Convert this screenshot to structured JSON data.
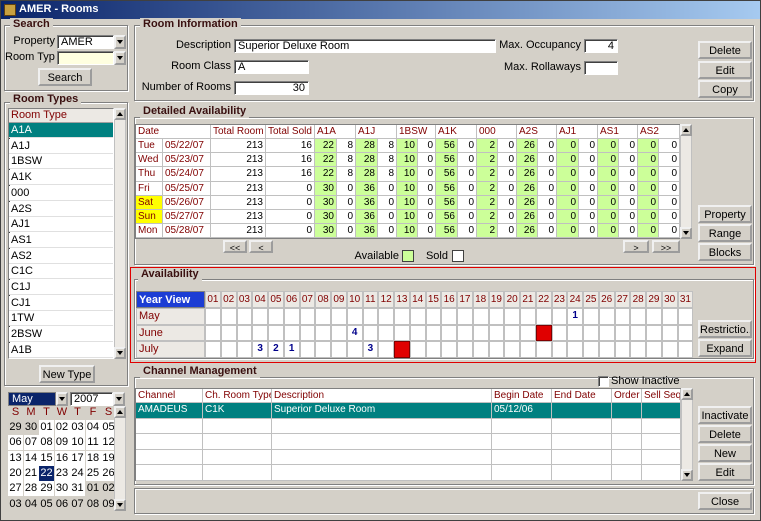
{
  "window": {
    "title": "AMER - Rooms"
  },
  "search": {
    "title": "Search",
    "property_label": "Property",
    "property": "AMER",
    "room_type_label": "Room Type",
    "button": "Search"
  },
  "room_types": {
    "title": "Room Types",
    "header": "Room Type",
    "items": [
      "A1A",
      "A1J",
      "1BSW",
      "A1K",
      "000",
      "A2S",
      "AJ1",
      "AS1",
      "AS2",
      "C1C",
      "C1J",
      "CJ1",
      "1TW",
      "2BSW",
      "A1B"
    ],
    "button": "New Type"
  },
  "calendar": {
    "month": "May",
    "year": "2007",
    "weekdays": [
      "S",
      "M",
      "T",
      "W",
      "T",
      "F",
      "S"
    ],
    "weeks": [
      [
        "29",
        "30",
        "01",
        "02",
        "03",
        "04",
        "05"
      ],
      [
        "06",
        "07",
        "08",
        "09",
        "10",
        "11",
        "12"
      ],
      [
        "13",
        "14",
        "15",
        "16",
        "17",
        "18",
        "19"
      ],
      [
        "20",
        "21",
        "22",
        "23",
        "24",
        "25",
        "26"
      ],
      [
        "27",
        "28",
        "29",
        "30",
        "31",
        "01",
        "02"
      ],
      [
        "03",
        "04",
        "05",
        "06",
        "07",
        "08",
        "09"
      ]
    ]
  },
  "room_info": {
    "title": "Room Information",
    "description_label": "Description",
    "description": "Superior Deluxe Room",
    "room_class_label": "Room Class",
    "room_class": "A",
    "rooms_label": "Number of Rooms",
    "rooms": "30",
    "max_occupancy_label": "Max. Occupancy",
    "max_occupancy": "4",
    "max_rollaways_label": "Max. Rollaways",
    "buttons": [
      "Delete",
      "Edit",
      "Copy"
    ]
  },
  "detailed": {
    "title": "Detailed Availability",
    "columns": [
      "Date",
      "Total Room",
      "Total Sold",
      "A1A",
      "A1J",
      "1BSW",
      "A1K",
      "000",
      "A2S",
      "AJ1",
      "AS1",
      "AS2"
    ],
    "rows": [
      [
        "Tue",
        "05/22/07",
        213,
        16,
        22,
        8,
        28,
        8,
        10,
        0,
        56,
        0,
        2,
        0,
        26,
        0,
        0,
        0,
        0,
        0,
        0,
        0
      ],
      [
        "Wed",
        "05/23/07",
        213,
        16,
        22,
        8,
        28,
        8,
        10,
        0,
        56,
        0,
        2,
        0,
        26,
        0,
        0,
        0,
        0,
        0,
        0,
        0
      ],
      [
        "Thu",
        "05/24/07",
        213,
        16,
        22,
        8,
        28,
        8,
        10,
        0,
        56,
        0,
        2,
        0,
        26,
        0,
        0,
        0,
        0,
        0,
        0,
        0
      ],
      [
        "Fri",
        "05/25/07",
        213,
        0,
        30,
        0,
        36,
        0,
        10,
        0,
        56,
        0,
        2,
        0,
        26,
        0,
        0,
        0,
        0,
        0,
        0,
        0
      ],
      [
        "Sat",
        "05/26/07",
        213,
        0,
        30,
        0,
        36,
        0,
        10,
        0,
        56,
        0,
        2,
        0,
        26,
        0,
        0,
        0,
        0,
        0,
        0,
        0
      ],
      [
        "Sun",
        "05/27/07",
        213,
        0,
        30,
        0,
        36,
        0,
        10,
        0,
        56,
        0,
        2,
        0,
        26,
        0,
        0,
        0,
        0,
        0,
        0,
        0
      ],
      [
        "Mon",
        "05/28/07",
        213,
        0,
        30,
        0,
        36,
        0,
        10,
        0,
        56,
        0,
        2,
        0,
        26,
        0,
        0,
        0,
        0,
        0,
        0,
        0
      ]
    ],
    "nav": [
      "<<",
      "<",
      ">",
      ">>"
    ],
    "legend": [
      "Available",
      "Sold"
    ],
    "buttons": [
      "Property",
      "Range",
      "Blocks"
    ]
  },
  "availability": {
    "title": "Availability",
    "header": "Year View",
    "days": [
      "01",
      "02",
      "03",
      "04",
      "05",
      "06",
      "07",
      "08",
      "09",
      "10",
      "11",
      "12",
      "13",
      "14",
      "15",
      "16",
      "17",
      "18",
      "19",
      "20",
      "21",
      "22",
      "23",
      "24",
      "25",
      "26",
      "27",
      "28",
      "29",
      "30",
      "31"
    ],
    "months": [
      {
        "name": "May",
        "counts": [
          {
            "day": 24,
            "count": 1
          }
        ]
      },
      {
        "name": "June",
        "counts": [
          {
            "day": 10,
            "count": 4
          }
        ],
        "blocked": [
          22
        ]
      },
      {
        "name": "July",
        "counts": [
          {
            "day": 4,
            "count": 3
          },
          {
            "day": 5,
            "count": 2
          },
          {
            "day": 6,
            "count": 1
          },
          {
            "day": 11,
            "count": 3
          }
        ],
        "blocked": [
          13
        ]
      }
    ],
    "buttons": [
      "Restrictio...",
      "Expand"
    ]
  },
  "channel": {
    "title": "Channel Management",
    "show_inactive": "Show Inactive",
    "columns": [
      "Channel",
      "Ch. Room Type",
      "Description",
      "Begin Date",
      "End Date",
      "Order",
      "Sell Seq."
    ],
    "rows": [
      [
        "AMADEUS",
        "C1K",
        "Superior Deluxe Room",
        "05/12/06"
      ]
    ],
    "buttons": [
      "Inactivate",
      "Delete",
      "New",
      "Edit"
    ]
  },
  "footer": {
    "close": "Close"
  }
}
